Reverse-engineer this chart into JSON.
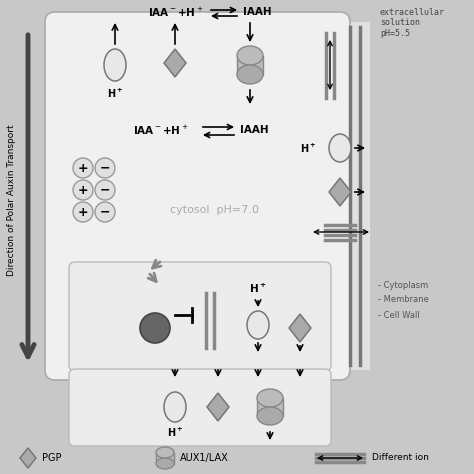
{
  "bg_color": "#c8c8c8",
  "cell_bg": "#f0f0f0",
  "right_area_bg": "#e0e0e0",
  "lower_cell_bg": "#eeeeee",
  "bottom_cell_bg": "#eeeeee",
  "extracellular_text": "extracellular\nsolution\npH=5.5",
  "cytosol_text": "cytosol  pH=7.0",
  "cytoplasm_label": "- Cytoplasm",
  "membrane_label": "- Membrane",
  "cellwall_label": "- Cell Wall",
  "pgp_label": "PGP",
  "aux1lax_label": "AUX1/LAX",
  "diffion_label": "Different ion",
  "title_rotate": "Direction of Polar Auxin Transport"
}
